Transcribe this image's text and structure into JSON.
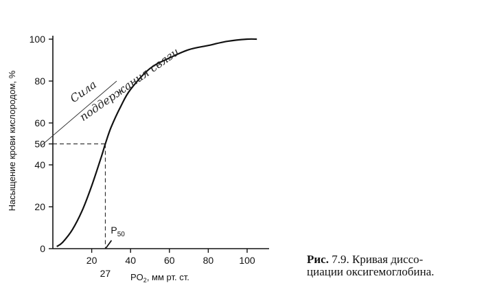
{
  "chart_data": {
    "type": "line",
    "xlabel_pre": "PO",
    "xlabel_sub": "2",
    "xlabel_post": ", мм рт. ст.",
    "ylabel": "Насыщение крови кислородом, %",
    "x_ticks": [
      20,
      40,
      60,
      80,
      100
    ],
    "y_ticks": [
      0,
      20,
      40,
      50,
      60,
      80,
      100
    ],
    "xlim": [
      0,
      110
    ],
    "ylim": [
      0,
      100
    ],
    "series": [
      {
        "x": [
          2,
          5,
          10,
          15,
          20,
          25,
          27,
          30,
          35,
          40,
          50,
          60,
          70,
          80,
          90,
          100,
          105
        ],
        "y": [
          1,
          3,
          9,
          18,
          30,
          44,
          50,
          58,
          68,
          76,
          86,
          91,
          95,
          97,
          99,
          100,
          100
        ]
      }
    ],
    "p50": {
      "x": 27,
      "y": 50,
      "x_label": "27",
      "label_main": "P",
      "label_sub": "50"
    },
    "handwritten_note": [
      "Сила",
      "поддержания связи"
    ]
  },
  "caption": {
    "prefix": "Рис.",
    "text_line1": " 7.9. Кривая диссо-",
    "text_line2": "циации оксигемоглобина."
  }
}
